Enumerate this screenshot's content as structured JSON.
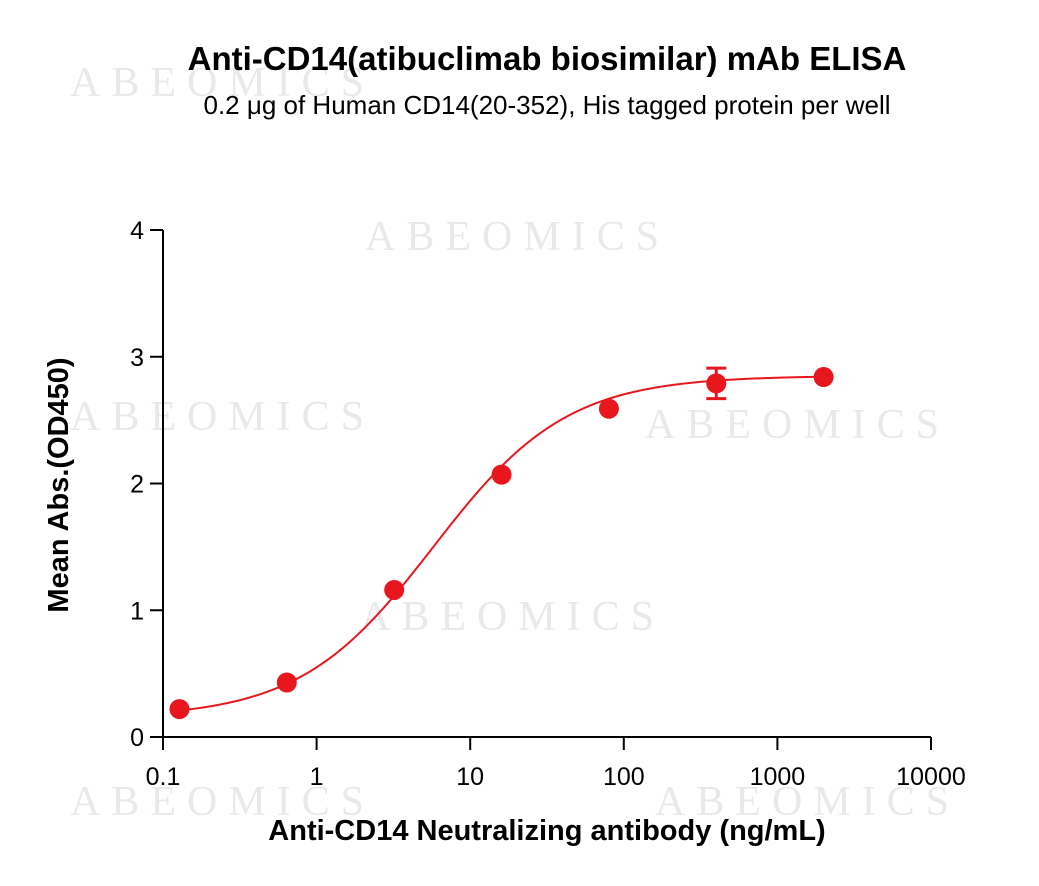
{
  "watermark_text": "ABEOMICS",
  "chart_data": {
    "type": "scatter",
    "title": "Anti-CD14(atibuclimab biosimilar) mAb ELISA",
    "subtitle": "0.2 μg of Human CD14(20-352), His tagged protein per well",
    "xlabel": "Anti-CD14 Neutralizing antibody (ng/mL)",
    "ylabel": "Mean Abs.(OD450)",
    "x_scale": "log",
    "xlim": [
      0.1,
      10000
    ],
    "ylim": [
      0,
      4
    ],
    "x_ticks": [
      "0.1",
      "1",
      "10",
      "100",
      "1000",
      "10000"
    ],
    "y_ticks": [
      "0",
      "1",
      "2",
      "3",
      "4"
    ],
    "grid": false,
    "color": "#e8171d",
    "points": [
      {
        "x": 0.128,
        "y": 0.22,
        "err": 0.02
      },
      {
        "x": 0.64,
        "y": 0.43,
        "err": 0.02
      },
      {
        "x": 3.2,
        "y": 1.16,
        "err": 0.03
      },
      {
        "x": 16,
        "y": 2.07,
        "err": 0.03
      },
      {
        "x": 80,
        "y": 2.59,
        "err": 0.03
      },
      {
        "x": 400,
        "y": 2.79,
        "err": 0.12
      },
      {
        "x": 2000,
        "y": 2.84,
        "err": 0.03
      }
    ],
    "fit": {
      "bottom": 0.15,
      "top": 2.85,
      "log_ec50": 0.76,
      "hill": 1.0
    }
  }
}
